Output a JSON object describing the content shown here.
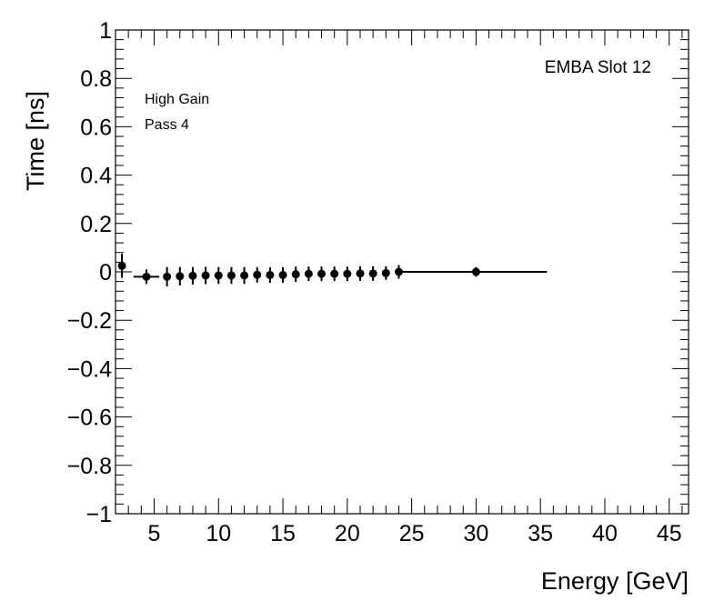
{
  "chart_data": {
    "type": "scatter",
    "title": "",
    "xlabel": "Energy [GeV]",
    "ylabel": "Time [ns]",
    "xlim": [
      2,
      46.5
    ],
    "ylim": [
      -1,
      1
    ],
    "x_ticks": [
      5,
      10,
      15,
      20,
      25,
      30,
      35,
      40,
      45
    ],
    "y_ticks": [
      -1,
      -0.8,
      -0.6,
      -0.4,
      -0.2,
      0,
      0.2,
      0.4,
      0.6,
      0.8,
      1
    ],
    "x_tick_labels": [
      "5",
      "10",
      "15",
      "20",
      "25",
      "30",
      "35",
      "40",
      "45"
    ],
    "y_tick_labels": [
      "−1",
      "−0.8",
      "−0.6",
      "−0.4",
      "−0.2",
      "0",
      "0.2",
      "0.4",
      "0.6",
      "0.8",
      "1"
    ],
    "annotations": {
      "label_top_right": "EMBA Slot 12",
      "label_gain": "High Gain",
      "label_pass": "Pass 4"
    },
    "grid": false,
    "series": [
      {
        "marker": "circle",
        "color": "#000000",
        "points": [
          {
            "x": 2.5,
            "y": 0.025,
            "yerr": 0.05
          },
          {
            "x": 4.4,
            "y": -0.02,
            "yerr": 0.03,
            "xerr": 1.0
          },
          {
            "x": 6.0,
            "y": -0.02,
            "yerr": 0.04
          },
          {
            "x": 7.0,
            "y": -0.018,
            "yerr": 0.038
          },
          {
            "x": 8.0,
            "y": -0.016,
            "yerr": 0.036
          },
          {
            "x": 9.0,
            "y": -0.015,
            "yerr": 0.036
          },
          {
            "x": 10.0,
            "y": -0.015,
            "yerr": 0.035
          },
          {
            "x": 11.0,
            "y": -0.015,
            "yerr": 0.035
          },
          {
            "x": 12.0,
            "y": -0.015,
            "yerr": 0.035
          },
          {
            "x": 13.0,
            "y": -0.012,
            "yerr": 0.032
          },
          {
            "x": 14.0,
            "y": -0.013,
            "yerr": 0.032
          },
          {
            "x": 15.0,
            "y": -0.013,
            "yerr": 0.032
          },
          {
            "x": 16.0,
            "y": -0.01,
            "yerr": 0.032
          },
          {
            "x": 17.0,
            "y": -0.008,
            "yerr": 0.03
          },
          {
            "x": 18.0,
            "y": -0.008,
            "yerr": 0.03
          },
          {
            "x": 19.0,
            "y": -0.008,
            "yerr": 0.03
          },
          {
            "x": 20.0,
            "y": -0.008,
            "yerr": 0.03
          },
          {
            "x": 21.0,
            "y": -0.007,
            "yerr": 0.03
          },
          {
            "x": 22.0,
            "y": -0.007,
            "yerr": 0.03
          },
          {
            "x": 23.0,
            "y": -0.005,
            "yerr": 0.028
          },
          {
            "x": 24.0,
            "y": 0.0,
            "yerr": 0.028
          },
          {
            "x": 30.0,
            "y": 0.0,
            "yerr": 0.02
          }
        ],
        "segments": [
          {
            "x0": 24.0,
            "x1": 35.5,
            "y": 0.0
          }
        ]
      }
    ]
  }
}
